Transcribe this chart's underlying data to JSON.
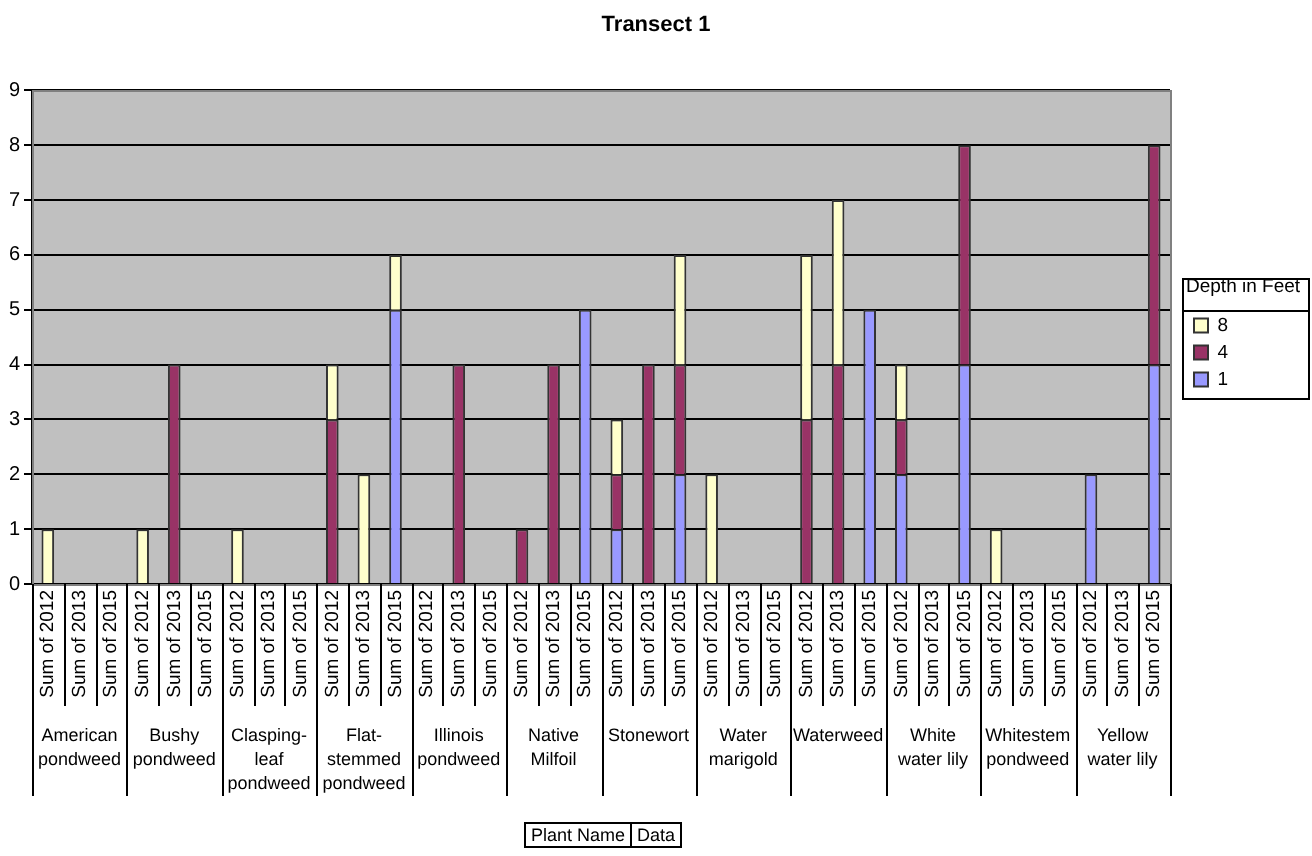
{
  "chart_data": {
    "type": "bar",
    "title": "Transect 1",
    "legend_title": "Depth in Feet",
    "categories": [
      "Sum of 2012",
      "Sum of 2013",
      "Sum of 2015",
      "Sum of 2012",
      "Sum of 2013",
      "Sum of 2015",
      "Sum of 2012",
      "Sum of 2013",
      "Sum of 2015",
      "Sum of 2012",
      "Sum of 2013",
      "Sum of 2015",
      "Sum of 2012",
      "Sum of 2013",
      "Sum of 2015",
      "Sum of 2012",
      "Sum of 2013",
      "Sum of 2015",
      "Sum of 2012",
      "Sum of 2013",
      "Sum of 2015",
      "Sum of 2012",
      "Sum of 2013",
      "Sum of 2015",
      "Sum of 2012",
      "Sum of 2013",
      "Sum of 2015",
      "Sum of 2012",
      "Sum of 2013",
      "Sum of 2015",
      "Sum of 2012",
      "Sum of 2013",
      "Sum of 2015",
      "Sum of 2012",
      "Sum of 2013",
      "Sum of 2015"
    ],
    "series": [
      {
        "name": "1",
        "color": "#9999ff",
        "values": [
          null,
          null,
          null,
          null,
          null,
          null,
          null,
          null,
          null,
          null,
          null,
          5,
          null,
          null,
          null,
          null,
          null,
          5,
          1,
          null,
          2,
          null,
          null,
          null,
          null,
          null,
          5,
          2,
          null,
          4,
          null,
          null,
          null,
          2,
          null,
          4
        ]
      },
      {
        "name": "4",
        "color": "#993366",
        "values": [
          null,
          null,
          null,
          null,
          4,
          null,
          null,
          null,
          null,
          3,
          null,
          null,
          null,
          4,
          null,
          1,
          4,
          null,
          1,
          4,
          2,
          null,
          null,
          null,
          3,
          4,
          null,
          1,
          null,
          4,
          null,
          null,
          null,
          null,
          null,
          4
        ]
      },
      {
        "name": "8",
        "color": "#ffffcc",
        "values": [
          1,
          null,
          null,
          1,
          null,
          null,
          1,
          null,
          null,
          1,
          2,
          1,
          null,
          null,
          null,
          null,
          null,
          null,
          1,
          null,
          2,
          2,
          null,
          null,
          3,
          3,
          null,
          1,
          null,
          null,
          1,
          null,
          null,
          null,
          null,
          null
        ]
      }
    ],
    "stacked": true,
    "ylim": [
      0,
      9
    ],
    "yticks": [
      0,
      1,
      2,
      3,
      4,
      5,
      6,
      7,
      8,
      9
    ],
    "grid": "y",
    "legend": "right",
    "annotations": [
      "American pondweed",
      "Bushy pondweed",
      "Clasping-leaf pondweed",
      "Flat-stemmed pondweed",
      "Illinois pondweed",
      "Native Milfoil",
      "Stonewort",
      "Water marigold",
      "Waterweed",
      "White water lily",
      "Whitestem pondweed",
      "Yellow water lily",
      "Plant Name",
      "Data"
    ]
  }
}
